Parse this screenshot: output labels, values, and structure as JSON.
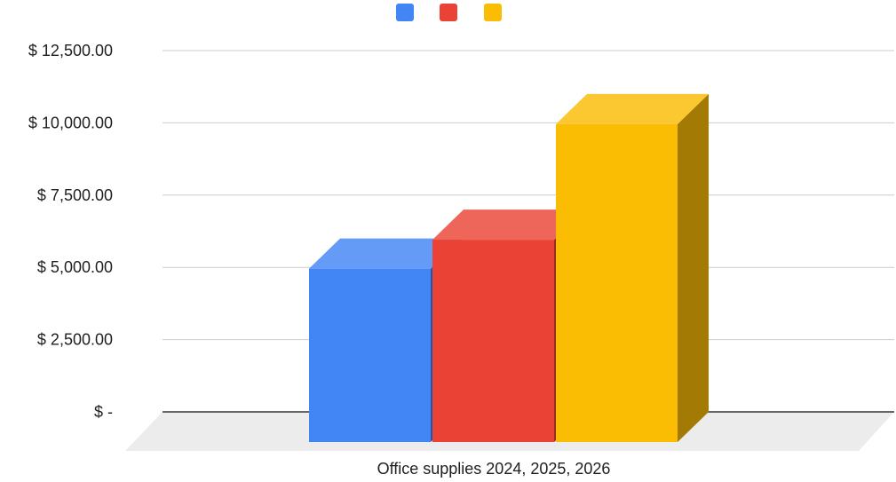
{
  "chart_data": {
    "type": "bar",
    "style": "3d",
    "categories": [
      "Office supplies 2024, 2025, 2026"
    ],
    "series": [
      {
        "values": [
          6000
        ],
        "color": "#4285F4"
      },
      {
        "values": [
          7000
        ],
        "color": "#EA4335"
      },
      {
        "values": [
          11000
        ],
        "color": "#FBBC04"
      }
    ],
    "ylim": [
      0,
      12500
    ],
    "yticks": [
      0,
      2500,
      5000,
      7500,
      10000,
      12500
    ],
    "ytick_labels": [
      "$ -",
      "$ 2,500.00",
      "$ 5,000.00",
      "$ 7,500.00",
      "$ 10,000.00",
      "$ 12,500.00"
    ],
    "grid": true,
    "legend_position": "top"
  }
}
